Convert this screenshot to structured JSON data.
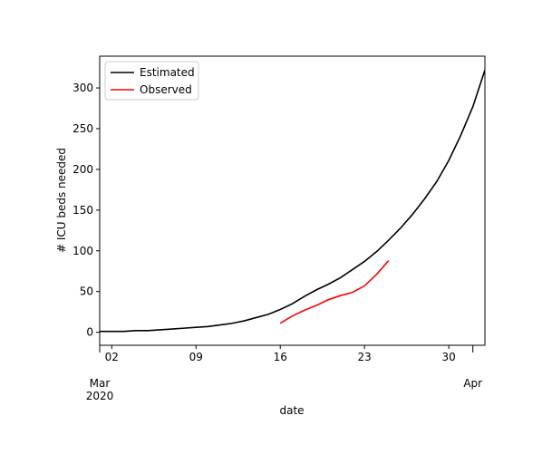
{
  "chart_data": {
    "type": "line",
    "x_label": "date",
    "y_label": "# ICU beds needed",
    "x": [
      "2020-03-01",
      "2020-03-02",
      "2020-03-03",
      "2020-03-04",
      "2020-03-05",
      "2020-03-06",
      "2020-03-07",
      "2020-03-08",
      "2020-03-09",
      "2020-03-10",
      "2020-03-11",
      "2020-03-12",
      "2020-03-13",
      "2020-03-14",
      "2020-03-15",
      "2020-03-16",
      "2020-03-17",
      "2020-03-18",
      "2020-03-19",
      "2020-03-20",
      "2020-03-21",
      "2020-03-22",
      "2020-03-23",
      "2020-03-24",
      "2020-03-25",
      "2020-03-26",
      "2020-03-27",
      "2020-03-28",
      "2020-03-29",
      "2020-03-30",
      "2020-03-31",
      "2020-04-01",
      "2020-04-02"
    ],
    "series": [
      {
        "name": "Estimated",
        "color": "#000000",
        "values": [
          1,
          1,
          1,
          2,
          2,
          3,
          4,
          5,
          6,
          7,
          9,
          11,
          14,
          18,
          22,
          28,
          35,
          44,
          52,
          59,
          67,
          77,
          87,
          99,
          113,
          128,
          145,
          164,
          185,
          211,
          242,
          277,
          322
        ]
      },
      {
        "name": "Observed",
        "color": "#ff0000",
        "values": [
          null,
          null,
          null,
          null,
          null,
          null,
          null,
          null,
          null,
          null,
          null,
          null,
          null,
          null,
          null,
          11,
          20,
          27,
          33,
          40,
          45,
          49,
          57,
          71,
          88,
          null,
          null,
          null,
          null,
          null,
          null,
          null,
          null
        ]
      }
    ],
    "xlim": [
      "2020-03-01",
      "2020-04-02"
    ],
    "xticks": [
      {
        "value": "2020-03-01",
        "label": "Mar\n2020"
      },
      {
        "value": "2020-03-02",
        "label": "02"
      },
      {
        "value": "2020-03-09",
        "label": "09"
      },
      {
        "value": "2020-03-16",
        "label": "16"
      },
      {
        "value": "2020-03-23",
        "label": "23"
      },
      {
        "value": "2020-03-30",
        "label": "30"
      },
      {
        "value": "2020-04-01",
        "label": "Apr"
      }
    ],
    "ylim": [
      -16,
      339
    ],
    "yticks": [
      0,
      50,
      100,
      150,
      200,
      250,
      300
    ],
    "grid": false,
    "legend": "upper left"
  }
}
